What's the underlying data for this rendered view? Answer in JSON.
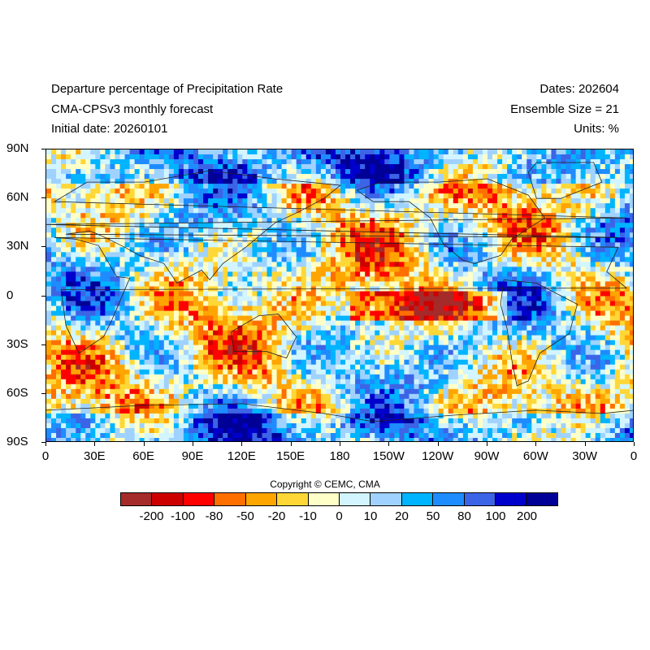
{
  "header": {
    "title": "Departure percentage of Precipitation Rate",
    "model": "CMA-CPSv3 monthly forecast",
    "initial_date": "Initial date: 20260101",
    "dates": "Dates: 202604",
    "ensemble": "Ensemble Size = 21",
    "units": "Units: %"
  },
  "axes": {
    "lat_labels": [
      "90N",
      "60N",
      "30N",
      "0",
      "30S",
      "60S",
      "90S"
    ],
    "lon_labels": [
      "0",
      "30E",
      "60E",
      "90E",
      "120E",
      "150E",
      "180",
      "150W",
      "120W",
      "90W",
      "60W",
      "30W",
      "0"
    ]
  },
  "copyright": "Copyright © CEMC, CMA",
  "colorbar": {
    "colors": [
      "#a52a2a",
      "#cd0000",
      "#ff0000",
      "#ff6f00",
      "#ffa500",
      "#ffd737",
      "#ffffc8",
      "#d2f5ff",
      "#a0d2ff",
      "#00b4ff",
      "#1e8cff",
      "#3c64e6",
      "#0000cd",
      "#000096"
    ],
    "labels": [
      "-200",
      "-100",
      "-80",
      "-50",
      "-20",
      "-10",
      "0",
      "10",
      "20",
      "50",
      "80",
      "100",
      "200"
    ]
  },
  "chart_data": {
    "type": "heatmap",
    "title": "Departure percentage of Precipitation Rate",
    "subtitle": "CMA-CPSv3 monthly forecast",
    "x_range": [
      0,
      360
    ],
    "y_range": [
      -90,
      90
    ],
    "x_ticks": [
      "0",
      "30E",
      "60E",
      "90E",
      "120E",
      "150E",
      "180",
      "150W",
      "120W",
      "90W",
      "60W",
      "30W",
      "0"
    ],
    "y_ticks": [
      "90N",
      "60N",
      "30N",
      "0",
      "30S",
      "60S",
      "90S"
    ],
    "legend_placement": "bottom",
    "color_levels": [
      -200,
      -100,
      -80,
      -50,
      -20,
      -10,
      0,
      10,
      20,
      50,
      80,
      100,
      200
    ]
  }
}
